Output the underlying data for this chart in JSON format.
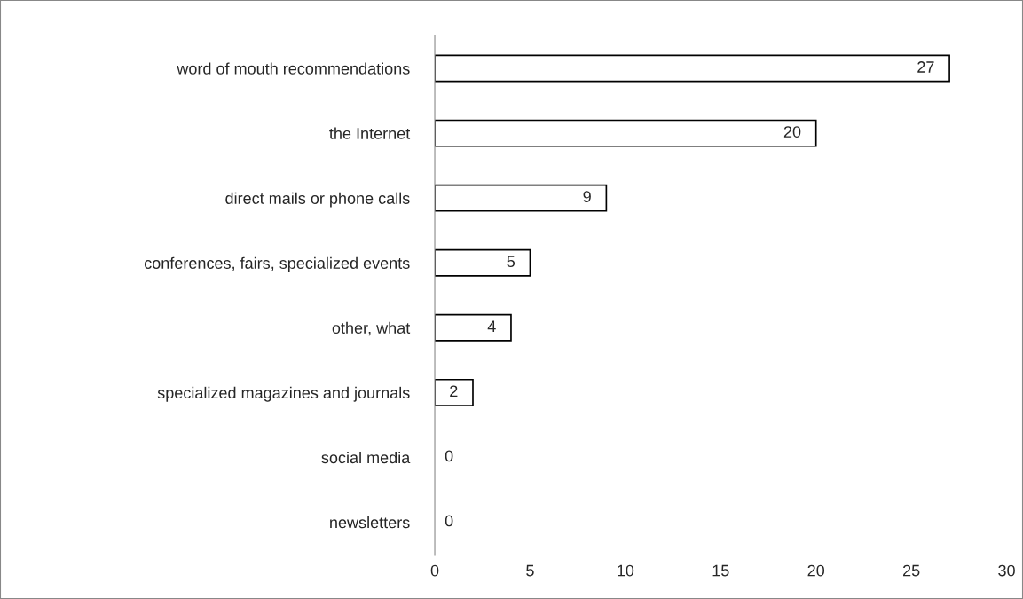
{
  "chart_data": {
    "type": "bar",
    "orientation": "horizontal",
    "categories": [
      "word of mouth recommendations",
      "the Internet",
      "direct mails or phone calls",
      "conferences, fairs, specialized events",
      "other, what",
      "specialized magazines and journals",
      "social media",
      "newsletters"
    ],
    "values": [
      27,
      20,
      9,
      5,
      4,
      2,
      0,
      0
    ],
    "color": "#ffffff",
    "xlim": [
      0,
      30
    ],
    "xticks": [
      0,
      5,
      10,
      15,
      20,
      25,
      30
    ],
    "grid": false,
    "data_labels": true
  }
}
